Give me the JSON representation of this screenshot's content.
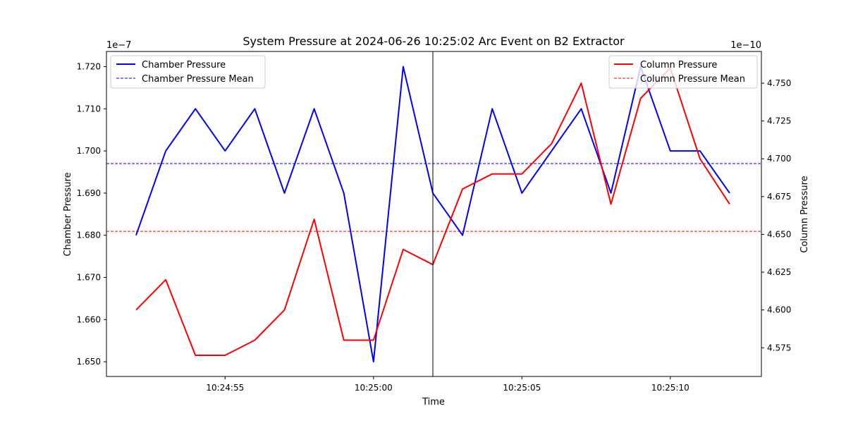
{
  "chart_data": {
    "type": "line",
    "title": "System Pressure at 2024-06-26 10:25:02 Arc Event on B2 Extractor",
    "xlabel": "Time",
    "x": [
      "10:24:52",
      "10:24:53",
      "10:24:54",
      "10:24:55",
      "10:24:56",
      "10:24:57",
      "10:24:58",
      "10:24:59",
      "10:25:00",
      "10:25:01",
      "10:25:02",
      "10:25:03",
      "10:25:04",
      "10:25:05",
      "10:25:06",
      "10:25:07",
      "10:25:08",
      "10:25:09",
      "10:25:10",
      "10:25:11",
      "10:25:12"
    ],
    "x_ticks": [
      "10:24:55",
      "10:25:00",
      "10:25:05",
      "10:25:10"
    ],
    "event_time": "10:25:02",
    "left_axis": {
      "label": "Chamber Pressure",
      "offset_label": "1e−7",
      "ylim": [
        1.6465,
        1.7236
      ],
      "ticks": [
        "1.650",
        "1.660",
        "1.670",
        "1.680",
        "1.690",
        "1.700",
        "1.710",
        "1.720"
      ]
    },
    "right_axis": {
      "label": "Column Pressure",
      "offset_label": "1e−10",
      "ylim": [
        4.556,
        4.771
      ],
      "ticks": [
        "4.575",
        "4.600",
        "4.625",
        "4.650",
        "4.675",
        "4.700",
        "4.725",
        "4.750"
      ]
    },
    "series": [
      {
        "name": "Chamber Pressure",
        "axis": "left",
        "color": "#0000ff",
        "style": "solid",
        "values": [
          1.68,
          1.7,
          1.71,
          1.7,
          1.71,
          1.69,
          1.71,
          1.69,
          1.65,
          1.72,
          1.69,
          1.68,
          1.71,
          1.69,
          1.7,
          1.71,
          1.69,
          1.72,
          1.7,
          1.7,
          1.69
        ]
      },
      {
        "name": "Chamber Pressure Mean",
        "axis": "left",
        "color": "#0000ff",
        "style": "dashed",
        "mean": 1.697
      },
      {
        "name": "Column Pressure",
        "axis": "right",
        "color": "#ff0000",
        "style": "solid",
        "values": [
          4.6,
          4.62,
          4.57,
          4.57,
          4.58,
          4.6,
          4.66,
          4.58,
          4.58,
          4.64,
          4.63,
          4.68,
          4.69,
          4.69,
          4.71,
          4.75,
          4.67,
          4.74,
          4.76,
          4.7,
          4.67
        ]
      },
      {
        "name": "Column Pressure Mean",
        "axis": "right",
        "color": "#ff0000",
        "style": "dashed",
        "mean": 4.652
      }
    ],
    "legend_left_position": "top-left",
    "legend_right_position": "top-right",
    "grid": false
  }
}
